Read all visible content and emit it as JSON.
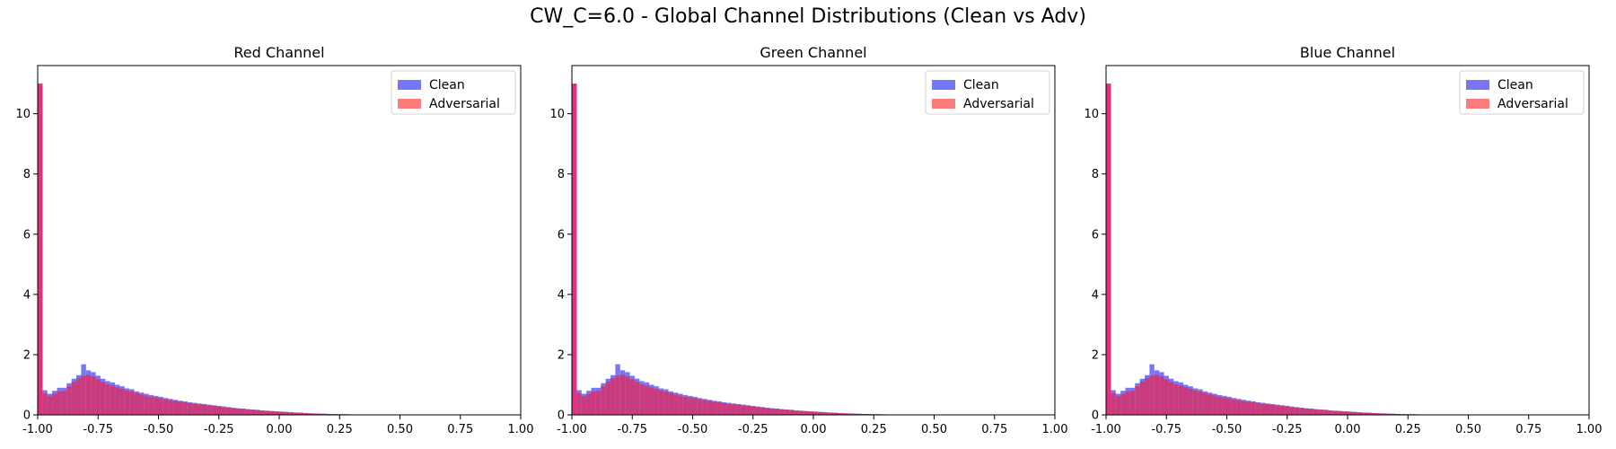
{
  "figure": {
    "suptitle": "CW_C=6.0 - Global Channel Distributions (Clean vs Adv)"
  },
  "colors": {
    "clean": "#7777f5",
    "adversarial": "#fb7c7c",
    "overlap": "#c83c7f",
    "first_bin": "#e0307f"
  },
  "chart_data": [
    {
      "type": "bar",
      "title": "Red Channel",
      "xlim": [
        -1.0,
        1.0
      ],
      "ylim": [
        0,
        11.6
      ],
      "xticks": [
        "-1.00",
        "-0.75",
        "-0.50",
        "-0.25",
        "0.00",
        "0.25",
        "0.50",
        "0.75",
        "1.00"
      ],
      "yticks": [
        "0",
        "2",
        "4",
        "6",
        "8",
        "10"
      ],
      "legend": {
        "position": "top-right",
        "entries": [
          "Clean",
          "Adversarial"
        ]
      },
      "bin_width": 0.02,
      "x_start": -1.0,
      "series": [
        {
          "name": "Clean",
          "values": [
            11.0,
            0.82,
            0.7,
            0.8,
            0.9,
            0.9,
            1.05,
            1.2,
            1.32,
            1.68,
            1.48,
            1.42,
            1.3,
            1.2,
            1.12,
            1.08,
            1.0,
            0.95,
            0.88,
            0.85,
            0.78,
            0.74,
            0.7,
            0.66,
            0.63,
            0.6,
            0.56,
            0.53,
            0.5,
            0.47,
            0.45,
            0.42,
            0.4,
            0.38,
            0.36,
            0.34,
            0.32,
            0.3,
            0.28,
            0.26,
            0.24,
            0.22,
            0.21,
            0.19,
            0.18,
            0.17,
            0.15,
            0.14,
            0.13,
            0.12,
            0.11,
            0.1,
            0.09,
            0.08,
            0.07,
            0.06,
            0.05,
            0.05,
            0.04,
            0.04,
            0.03,
            0.03,
            0.02,
            0.02,
            0.02,
            0.01,
            0.01,
            0.01,
            0.01,
            0.01,
            0.0,
            0.0,
            0.0,
            0.0,
            0.0,
            0.0,
            0.0,
            0.0,
            0.0,
            0.0,
            0.0,
            0.0,
            0.0,
            0.0,
            0.0,
            0.0,
            0.0,
            0.0,
            0.0,
            0.0,
            0.0,
            0.0,
            0.0,
            0.0,
            0.0,
            0.0,
            0.0,
            0.0,
            0.0,
            0.0
          ]
        },
        {
          "name": "Adversarial",
          "values": [
            11.0,
            0.72,
            0.62,
            0.7,
            0.78,
            0.8,
            0.95,
            1.1,
            1.22,
            1.3,
            1.34,
            1.28,
            1.18,
            1.1,
            1.02,
            0.98,
            0.92,
            0.87,
            0.81,
            0.78,
            0.72,
            0.68,
            0.64,
            0.6,
            0.58,
            0.55,
            0.52,
            0.49,
            0.46,
            0.44,
            0.42,
            0.39,
            0.37,
            0.35,
            0.34,
            0.32,
            0.3,
            0.28,
            0.26,
            0.24,
            0.22,
            0.21,
            0.2,
            0.18,
            0.17,
            0.16,
            0.14,
            0.13,
            0.12,
            0.11,
            0.1,
            0.09,
            0.08,
            0.07,
            0.07,
            0.06,
            0.05,
            0.04,
            0.04,
            0.03,
            0.03,
            0.02,
            0.02,
            0.02,
            0.01,
            0.01,
            0.01,
            0.01,
            0.01,
            0.0,
            0.0,
            0.0,
            0.0,
            0.0,
            0.0,
            0.0,
            0.0,
            0.0,
            0.0,
            0.0,
            0.0,
            0.0,
            0.0,
            0.0,
            0.0,
            0.0,
            0.0,
            0.0,
            0.0,
            0.0,
            0.0,
            0.0,
            0.0,
            0.0,
            0.0,
            0.0,
            0.0,
            0.0,
            0.0,
            0.0
          ]
        }
      ]
    },
    {
      "type": "bar",
      "title": "Green Channel",
      "xlim": [
        -1.0,
        1.0
      ],
      "ylim": [
        0,
        11.6
      ],
      "xticks": [
        "-1.00",
        "-0.75",
        "-0.50",
        "-0.25",
        "0.00",
        "0.25",
        "0.50",
        "0.75",
        "1.00"
      ],
      "yticks": [
        "0",
        "2",
        "4",
        "6",
        "8",
        "10"
      ],
      "legend": {
        "position": "top-right",
        "entries": [
          "Clean",
          "Adversarial"
        ]
      },
      "bin_width": 0.02,
      "x_start": -1.0,
      "series": [
        {
          "name": "Clean",
          "values": [
            11.0,
            0.82,
            0.7,
            0.8,
            0.9,
            0.9,
            1.05,
            1.2,
            1.32,
            1.68,
            1.48,
            1.42,
            1.3,
            1.2,
            1.12,
            1.08,
            1.0,
            0.95,
            0.88,
            0.85,
            0.78,
            0.74,
            0.7,
            0.66,
            0.63,
            0.6,
            0.56,
            0.53,
            0.5,
            0.47,
            0.45,
            0.42,
            0.4,
            0.38,
            0.36,
            0.34,
            0.32,
            0.3,
            0.28,
            0.26,
            0.24,
            0.22,
            0.21,
            0.19,
            0.18,
            0.17,
            0.15,
            0.14,
            0.13,
            0.12,
            0.11,
            0.1,
            0.09,
            0.08,
            0.07,
            0.06,
            0.05,
            0.05,
            0.04,
            0.04,
            0.03,
            0.03,
            0.02,
            0.02,
            0.02,
            0.01,
            0.01,
            0.01,
            0.01,
            0.01,
            0.0,
            0.0,
            0.0,
            0.0,
            0.0,
            0.0,
            0.0,
            0.0,
            0.0,
            0.0,
            0.0,
            0.0,
            0.0,
            0.0,
            0.0,
            0.0,
            0.0,
            0.0,
            0.0,
            0.0,
            0.0,
            0.0,
            0.0,
            0.0,
            0.0,
            0.0,
            0.0,
            0.0,
            0.0,
            0.0
          ]
        },
        {
          "name": "Adversarial",
          "values": [
            11.0,
            0.72,
            0.62,
            0.7,
            0.78,
            0.8,
            0.95,
            1.1,
            1.22,
            1.3,
            1.34,
            1.28,
            1.18,
            1.1,
            1.02,
            0.98,
            0.92,
            0.87,
            0.81,
            0.78,
            0.72,
            0.68,
            0.64,
            0.6,
            0.58,
            0.55,
            0.52,
            0.49,
            0.46,
            0.44,
            0.42,
            0.39,
            0.37,
            0.35,
            0.34,
            0.32,
            0.3,
            0.28,
            0.26,
            0.24,
            0.22,
            0.21,
            0.2,
            0.18,
            0.17,
            0.16,
            0.14,
            0.13,
            0.12,
            0.11,
            0.1,
            0.09,
            0.08,
            0.07,
            0.07,
            0.06,
            0.05,
            0.04,
            0.04,
            0.03,
            0.03,
            0.02,
            0.02,
            0.02,
            0.01,
            0.01,
            0.01,
            0.01,
            0.01,
            0.0,
            0.0,
            0.0,
            0.0,
            0.0,
            0.0,
            0.0,
            0.0,
            0.0,
            0.0,
            0.0,
            0.0,
            0.0,
            0.0,
            0.0,
            0.0,
            0.0,
            0.0,
            0.0,
            0.0,
            0.0,
            0.0,
            0.0,
            0.0,
            0.0,
            0.0,
            0.0,
            0.0,
            0.0,
            0.0,
            0.0
          ]
        }
      ]
    },
    {
      "type": "bar",
      "title": "Blue Channel",
      "xlim": [
        -1.0,
        1.0
      ],
      "ylim": [
        0,
        11.6
      ],
      "xticks": [
        "-1.00",
        "-0.75",
        "-0.50",
        "-0.25",
        "0.00",
        "0.25",
        "0.50",
        "0.75",
        "1.00"
      ],
      "yticks": [
        "0",
        "2",
        "4",
        "6",
        "8",
        "10"
      ],
      "legend": {
        "position": "top-right",
        "entries": [
          "Clean",
          "Adversarial"
        ]
      },
      "bin_width": 0.02,
      "x_start": -1.0,
      "series": [
        {
          "name": "Clean",
          "values": [
            11.0,
            0.82,
            0.7,
            0.8,
            0.9,
            0.9,
            1.05,
            1.2,
            1.32,
            1.68,
            1.48,
            1.42,
            1.3,
            1.2,
            1.12,
            1.08,
            1.0,
            0.95,
            0.88,
            0.85,
            0.78,
            0.74,
            0.7,
            0.66,
            0.63,
            0.6,
            0.56,
            0.53,
            0.5,
            0.47,
            0.45,
            0.42,
            0.4,
            0.38,
            0.36,
            0.34,
            0.32,
            0.3,
            0.28,
            0.26,
            0.24,
            0.22,
            0.21,
            0.19,
            0.18,
            0.17,
            0.15,
            0.14,
            0.13,
            0.12,
            0.11,
            0.1,
            0.09,
            0.08,
            0.07,
            0.06,
            0.05,
            0.05,
            0.04,
            0.04,
            0.03,
            0.03,
            0.02,
            0.02,
            0.02,
            0.01,
            0.01,
            0.01,
            0.01,
            0.01,
            0.0,
            0.0,
            0.0,
            0.0,
            0.0,
            0.0,
            0.0,
            0.0,
            0.0,
            0.0,
            0.0,
            0.0,
            0.0,
            0.0,
            0.0,
            0.0,
            0.0,
            0.0,
            0.0,
            0.0,
            0.0,
            0.0,
            0.0,
            0.0,
            0.0,
            0.0,
            0.0,
            0.0,
            0.0,
            0.0
          ]
        },
        {
          "name": "Adversarial",
          "values": [
            11.0,
            0.72,
            0.62,
            0.7,
            0.78,
            0.8,
            0.95,
            1.1,
            1.22,
            1.3,
            1.34,
            1.28,
            1.18,
            1.1,
            1.02,
            0.98,
            0.92,
            0.87,
            0.81,
            0.78,
            0.72,
            0.68,
            0.64,
            0.6,
            0.58,
            0.55,
            0.52,
            0.49,
            0.46,
            0.44,
            0.42,
            0.39,
            0.37,
            0.35,
            0.34,
            0.32,
            0.3,
            0.28,
            0.26,
            0.24,
            0.22,
            0.21,
            0.2,
            0.18,
            0.17,
            0.16,
            0.14,
            0.13,
            0.12,
            0.11,
            0.1,
            0.09,
            0.08,
            0.07,
            0.07,
            0.06,
            0.05,
            0.04,
            0.04,
            0.03,
            0.03,
            0.02,
            0.02,
            0.02,
            0.01,
            0.01,
            0.01,
            0.01,
            0.01,
            0.0,
            0.0,
            0.0,
            0.0,
            0.0,
            0.0,
            0.0,
            0.0,
            0.0,
            0.0,
            0.0,
            0.0,
            0.0,
            0.0,
            0.0,
            0.0,
            0.0,
            0.0,
            0.0,
            0.0,
            0.0,
            0.0,
            0.0,
            0.0,
            0.0,
            0.0,
            0.0,
            0.0,
            0.0,
            0.0,
            0.0
          ]
        }
      ]
    }
  ]
}
